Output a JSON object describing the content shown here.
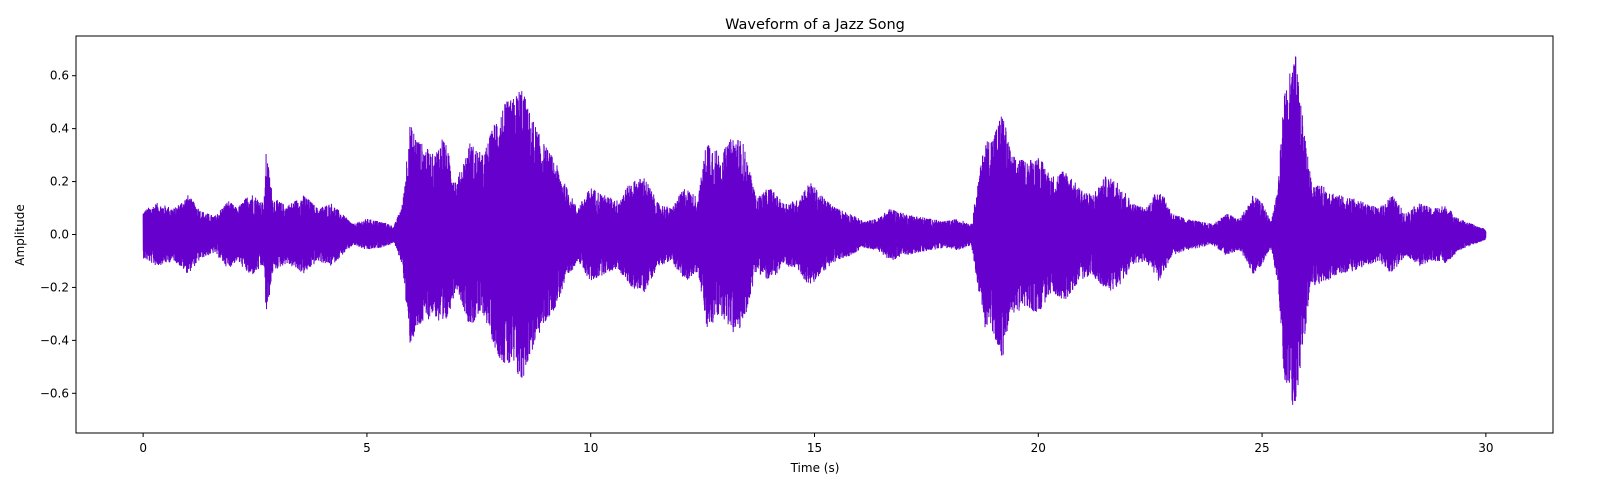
{
  "chart_data": {
    "type": "line",
    "title": "Waveform of a Jazz Song",
    "xlabel": "Time (s)",
    "ylabel": "Amplitude",
    "xlim": [
      -1.5,
      31.5
    ],
    "ylim": [
      -0.75,
      0.75
    ],
    "xticks": [
      0,
      5,
      10,
      15,
      20,
      25,
      30
    ],
    "xtick_labels": [
      "0",
      "5",
      "10",
      "15",
      "20",
      "25",
      "30"
    ],
    "yticks": [
      -0.6,
      -0.4,
      -0.2,
      0.0,
      0.2,
      0.4,
      0.6
    ],
    "ytick_labels": [
      "−0.6",
      "−0.4",
      "−0.2",
      "0.0",
      "0.2",
      "0.4",
      "0.6"
    ],
    "grid": false,
    "color": "#6600cc",
    "duration": 30,
    "series": [
      {
        "envelope": {
          "t": [
            0.0,
            0.3,
            0.7,
            1.0,
            1.3,
            1.6,
            1.9,
            2.1,
            2.4,
            2.7,
            2.75,
            2.9,
            3.2,
            3.6,
            3.9,
            4.2,
            4.5,
            4.7,
            5.0,
            5.3,
            5.5,
            5.6,
            5.8,
            5.95,
            6.2,
            6.5,
            6.7,
            7.0,
            7.3,
            7.6,
            7.9,
            8.1,
            8.3,
            8.45,
            8.6,
            8.9,
            9.2,
            9.4,
            9.7,
            10.0,
            10.3,
            10.6,
            10.9,
            11.2,
            11.5,
            11.8,
            12.1,
            12.4,
            12.6,
            12.9,
            13.2,
            13.4,
            13.7,
            14.0,
            14.3,
            14.6,
            14.9,
            15.2,
            15.5,
            15.8,
            16.1,
            16.4,
            16.7,
            17.0,
            17.3,
            17.6,
            17.9,
            18.2,
            18.5,
            18.8,
            19.0,
            19.2,
            19.4,
            19.7,
            20.0,
            20.3,
            20.6,
            20.9,
            21.2,
            21.5,
            21.8,
            22.1,
            22.4,
            22.7,
            23.0,
            23.3,
            23.6,
            23.9,
            24.2,
            24.5,
            24.8,
            25.0,
            25.2,
            25.35,
            25.5,
            25.75,
            25.9,
            26.1,
            26.4,
            26.7,
            27.0,
            27.3,
            27.6,
            27.9,
            28.2,
            28.5,
            28.8,
            29.1,
            29.4,
            29.7,
            30.0
          ],
          "amp": [
            0.09,
            0.12,
            0.1,
            0.15,
            0.09,
            0.07,
            0.13,
            0.1,
            0.16,
            0.12,
            0.32,
            0.14,
            0.11,
            0.15,
            0.1,
            0.12,
            0.07,
            0.04,
            0.06,
            0.05,
            0.04,
            0.03,
            0.12,
            0.42,
            0.35,
            0.3,
            0.38,
            0.2,
            0.35,
            0.3,
            0.45,
            0.5,
            0.52,
            0.57,
            0.48,
            0.36,
            0.28,
            0.2,
            0.1,
            0.18,
            0.15,
            0.13,
            0.2,
            0.22,
            0.12,
            0.1,
            0.18,
            0.14,
            0.37,
            0.3,
            0.38,
            0.35,
            0.14,
            0.18,
            0.12,
            0.13,
            0.2,
            0.14,
            0.1,
            0.08,
            0.05,
            0.06,
            0.1,
            0.08,
            0.07,
            0.06,
            0.05,
            0.06,
            0.04,
            0.35,
            0.38,
            0.47,
            0.3,
            0.28,
            0.3,
            0.22,
            0.25,
            0.18,
            0.15,
            0.22,
            0.2,
            0.12,
            0.1,
            0.18,
            0.08,
            0.06,
            0.05,
            0.04,
            0.08,
            0.06,
            0.15,
            0.12,
            0.05,
            0.18,
            0.55,
            0.68,
            0.45,
            0.2,
            0.18,
            0.15,
            0.14,
            0.12,
            0.1,
            0.15,
            0.08,
            0.12,
            0.1,
            0.11,
            0.06,
            0.04,
            0.02
          ]
        }
      }
    ]
  }
}
